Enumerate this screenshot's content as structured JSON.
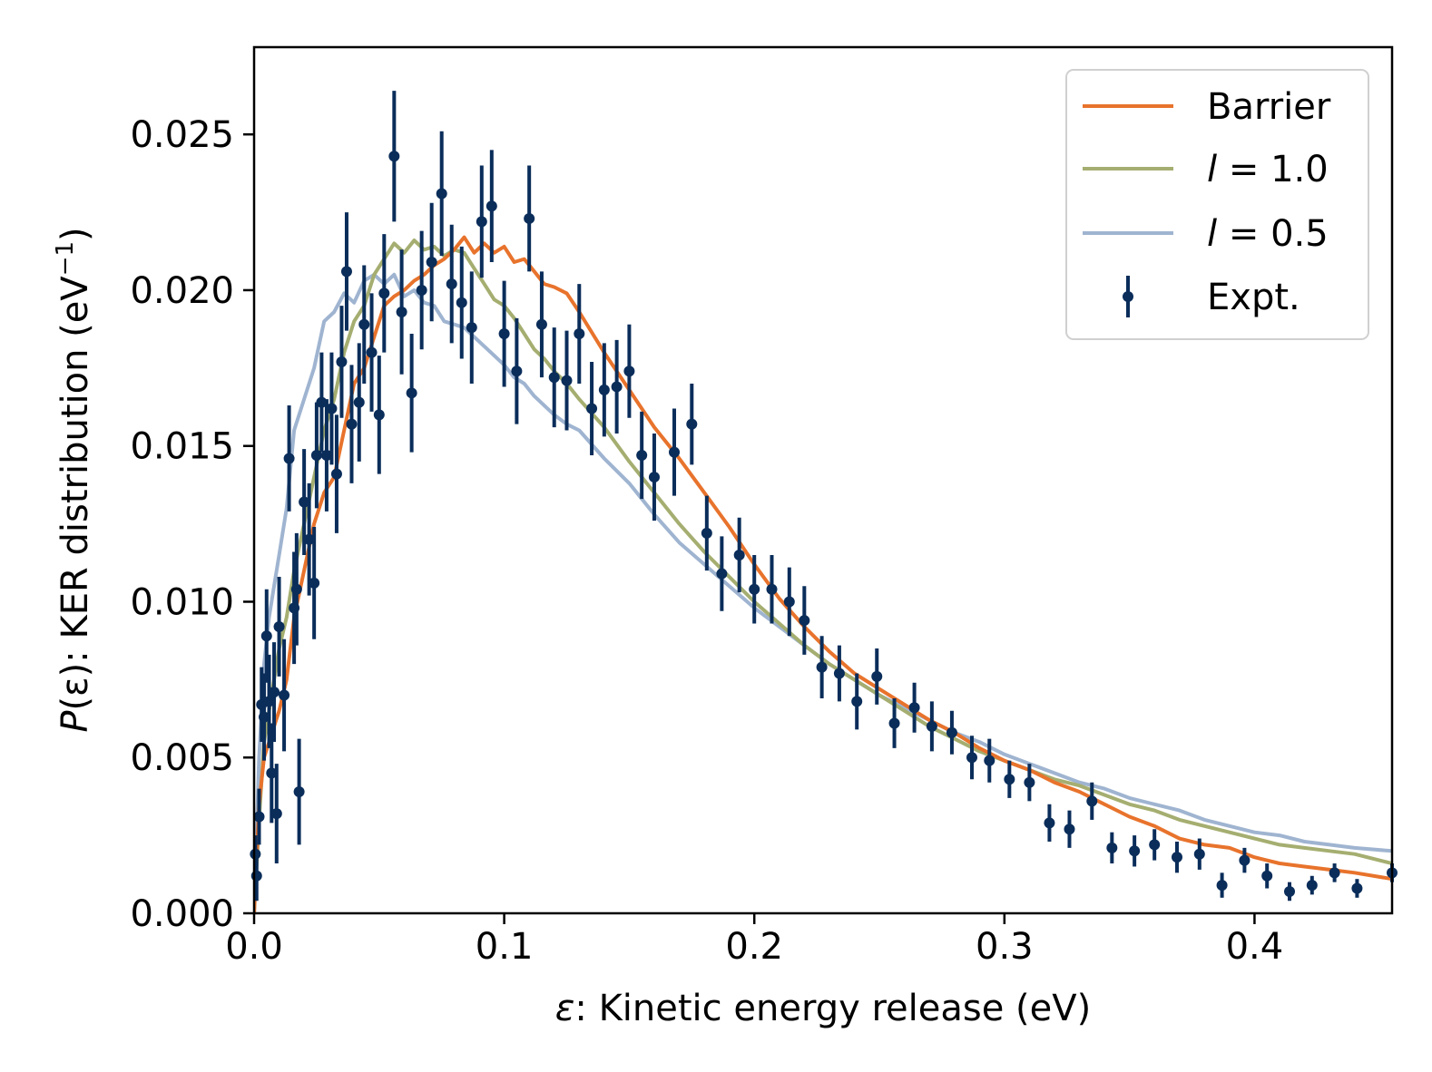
{
  "chart_data": {
    "type": "line",
    "xlabel_prefix": "ε",
    "xlabel": ": Kinetic energy release (eV)",
    "ylabel_prefix": "P",
    "ylabel_arg": "(ε)",
    "ylabel": ": KER distribution (eV",
    "ylabel_sup": "−1",
    "ylabel_close": ")",
    "xlim": [
      0.0,
      0.455
    ],
    "ylim": [
      0.0,
      0.0278
    ],
    "x_ticks": [
      0.0,
      0.1,
      0.2,
      0.3,
      0.4
    ],
    "x_tick_labels": [
      "0.0",
      "0.1",
      "0.2",
      "0.3",
      "0.4"
    ],
    "y_ticks": [
      0.0,
      0.005,
      0.01,
      0.015,
      0.02,
      0.025
    ],
    "y_tick_labels": [
      "0.000",
      "0.005",
      "0.010",
      "0.015",
      "0.020",
      "0.025"
    ],
    "grid": false,
    "legend_position": "top-right",
    "series": [
      {
        "name": "Barrier",
        "kind": "line",
        "color": "#e8732c",
        "x": [
          0.0,
          0.002,
          0.004,
          0.006,
          0.008,
          0.01,
          0.013,
          0.016,
          0.02,
          0.024,
          0.028,
          0.032,
          0.036,
          0.04,
          0.044,
          0.048,
          0.052,
          0.056,
          0.06,
          0.064,
          0.068,
          0.072,
          0.076,
          0.08,
          0.084,
          0.088,
          0.092,
          0.096,
          0.1,
          0.104,
          0.108,
          0.112,
          0.116,
          0.12,
          0.125,
          0.13,
          0.14,
          0.15,
          0.16,
          0.17,
          0.18,
          0.19,
          0.2,
          0.21,
          0.22,
          0.23,
          0.24,
          0.25,
          0.26,
          0.27,
          0.28,
          0.29,
          0.3,
          0.31,
          0.32,
          0.33,
          0.34,
          0.35,
          0.36,
          0.37,
          0.38,
          0.39,
          0.4,
          0.41,
          0.42,
          0.43,
          0.44,
          0.455
        ],
        "values": [
          0.0,
          0.0035,
          0.005,
          0.0055,
          0.006,
          0.0065,
          0.0075,
          0.0095,
          0.011,
          0.0125,
          0.0135,
          0.014,
          0.0155,
          0.017,
          0.0175,
          0.0185,
          0.0195,
          0.0198,
          0.02,
          0.0203,
          0.0205,
          0.0208,
          0.021,
          0.0213,
          0.0217,
          0.0212,
          0.0215,
          0.0212,
          0.0214,
          0.0209,
          0.021,
          0.0206,
          0.0202,
          0.0201,
          0.0199,
          0.0193,
          0.018,
          0.0168,
          0.0156,
          0.0146,
          0.0135,
          0.0124,
          0.0112,
          0.0101,
          0.0092,
          0.0084,
          0.0077,
          0.0072,
          0.0067,
          0.0062,
          0.0058,
          0.0053,
          0.0049,
          0.0046,
          0.0042,
          0.0039,
          0.0035,
          0.0031,
          0.0028,
          0.0024,
          0.0022,
          0.0021,
          0.0018,
          0.0016,
          0.0015,
          0.0014,
          0.0013,
          0.0011
        ]
      },
      {
        "name": "l = 1.0",
        "name_prefix": "l",
        "name_suffix": " = 1.0",
        "kind": "line",
        "color": "#a5ae70",
        "x": [
          0.0,
          0.002,
          0.004,
          0.006,
          0.008,
          0.01,
          0.013,
          0.016,
          0.02,
          0.024,
          0.028,
          0.032,
          0.036,
          0.04,
          0.044,
          0.048,
          0.052,
          0.056,
          0.06,
          0.064,
          0.068,
          0.072,
          0.076,
          0.08,
          0.084,
          0.088,
          0.092,
          0.096,
          0.1,
          0.104,
          0.108,
          0.112,
          0.116,
          0.12,
          0.125,
          0.13,
          0.14,
          0.15,
          0.16,
          0.17,
          0.18,
          0.19,
          0.2,
          0.21,
          0.22,
          0.23,
          0.24,
          0.25,
          0.26,
          0.27,
          0.28,
          0.29,
          0.3,
          0.31,
          0.32,
          0.33,
          0.34,
          0.35,
          0.36,
          0.37,
          0.38,
          0.39,
          0.4,
          0.41,
          0.42,
          0.43,
          0.44,
          0.455
        ],
        "values": [
          0.0,
          0.003,
          0.0055,
          0.0065,
          0.0075,
          0.0085,
          0.0095,
          0.011,
          0.0125,
          0.014,
          0.0155,
          0.0165,
          0.018,
          0.019,
          0.0195,
          0.0205,
          0.021,
          0.0215,
          0.0212,
          0.0216,
          0.0213,
          0.0214,
          0.0211,
          0.0213,
          0.0212,
          0.0207,
          0.0202,
          0.0197,
          0.0195,
          0.0191,
          0.0186,
          0.0181,
          0.0178,
          0.0174,
          0.017,
          0.0165,
          0.0156,
          0.0145,
          0.0135,
          0.0125,
          0.0116,
          0.0108,
          0.01,
          0.0093,
          0.0086,
          0.008,
          0.0075,
          0.007,
          0.0065,
          0.006,
          0.0056,
          0.0052,
          0.0049,
          0.0046,
          0.0043,
          0.0041,
          0.0038,
          0.0035,
          0.0033,
          0.003,
          0.0028,
          0.0026,
          0.0024,
          0.0022,
          0.0021,
          0.002,
          0.0019,
          0.0016
        ]
      },
      {
        "name": "l = 0.5",
        "name_prefix": "l",
        "name_suffix": " = 0.5",
        "kind": "line",
        "color": "#9fb4d0",
        "x": [
          0.0,
          0.002,
          0.004,
          0.006,
          0.008,
          0.01,
          0.013,
          0.016,
          0.02,
          0.024,
          0.028,
          0.032,
          0.036,
          0.04,
          0.044,
          0.048,
          0.052,
          0.056,
          0.06,
          0.064,
          0.068,
          0.072,
          0.076,
          0.08,
          0.084,
          0.088,
          0.092,
          0.096,
          0.1,
          0.104,
          0.108,
          0.112,
          0.116,
          0.12,
          0.125,
          0.13,
          0.14,
          0.15,
          0.16,
          0.17,
          0.18,
          0.19,
          0.2,
          0.21,
          0.22,
          0.23,
          0.24,
          0.25,
          0.26,
          0.27,
          0.28,
          0.29,
          0.3,
          0.31,
          0.32,
          0.33,
          0.34,
          0.35,
          0.36,
          0.37,
          0.38,
          0.39,
          0.4,
          0.41,
          0.42,
          0.43,
          0.44,
          0.455
        ],
        "values": [
          0.0,
          0.005,
          0.008,
          0.0095,
          0.0105,
          0.0115,
          0.013,
          0.0155,
          0.0165,
          0.0175,
          0.019,
          0.0193,
          0.0199,
          0.0196,
          0.0203,
          0.0205,
          0.0202,
          0.0205,
          0.0198,
          0.02,
          0.0196,
          0.0195,
          0.019,
          0.0189,
          0.0188,
          0.0185,
          0.0182,
          0.0179,
          0.0176,
          0.0172,
          0.017,
          0.0166,
          0.0163,
          0.016,
          0.0157,
          0.0155,
          0.0146,
          0.0138,
          0.0128,
          0.0119,
          0.0112,
          0.0105,
          0.0098,
          0.0092,
          0.0086,
          0.008,
          0.0075,
          0.007,
          0.0066,
          0.0062,
          0.0058,
          0.0055,
          0.0051,
          0.0048,
          0.0045,
          0.0042,
          0.004,
          0.0037,
          0.0035,
          0.0033,
          0.003,
          0.0028,
          0.0026,
          0.0025,
          0.0023,
          0.0022,
          0.0021,
          0.002
        ]
      },
      {
        "name": "Expt.",
        "kind": "errorbar",
        "color": "#0a2d5a",
        "x": [
          0.0005,
          0.001,
          0.002,
          0.003,
          0.004,
          0.005,
          0.006,
          0.007,
          0.008,
          0.009,
          0.01,
          0.012,
          0.014,
          0.016,
          0.017,
          0.018,
          0.02,
          0.022,
          0.024,
          0.025,
          0.027,
          0.029,
          0.031,
          0.033,
          0.035,
          0.037,
          0.039,
          0.042,
          0.044,
          0.047,
          0.05,
          0.052,
          0.056,
          0.059,
          0.063,
          0.067,
          0.071,
          0.075,
          0.079,
          0.083,
          0.087,
          0.091,
          0.095,
          0.1,
          0.105,
          0.11,
          0.115,
          0.12,
          0.125,
          0.13,
          0.135,
          0.14,
          0.145,
          0.15,
          0.155,
          0.16,
          0.168,
          0.175,
          0.181,
          0.187,
          0.194,
          0.2,
          0.207,
          0.214,
          0.22,
          0.227,
          0.234,
          0.241,
          0.249,
          0.256,
          0.264,
          0.271,
          0.279,
          0.287,
          0.294,
          0.302,
          0.31,
          0.318,
          0.326,
          0.335,
          0.343,
          0.352,
          0.36,
          0.369,
          0.378,
          0.387,
          0.396,
          0.405,
          0.414,
          0.423,
          0.432,
          0.441,
          0.455
        ],
        "values": [
          0.0019,
          0.0012,
          0.0031,
          0.0067,
          0.0063,
          0.0089,
          0.0068,
          0.0045,
          0.0071,
          0.0032,
          0.0092,
          0.007,
          0.0146,
          0.0098,
          0.0104,
          0.0039,
          0.0132,
          0.012,
          0.0106,
          0.0147,
          0.0164,
          0.0147,
          0.0162,
          0.0141,
          0.0177,
          0.0206,
          0.0157,
          0.0164,
          0.0189,
          0.018,
          0.016,
          0.0199,
          0.0243,
          0.0193,
          0.0167,
          0.02,
          0.0209,
          0.0231,
          0.0202,
          0.0196,
          0.0188,
          0.0222,
          0.0227,
          0.0186,
          0.0174,
          0.0223,
          0.0189,
          0.0172,
          0.0171,
          0.0186,
          0.0162,
          0.0168,
          0.0169,
          0.0174,
          0.0147,
          0.014,
          0.0148,
          0.0157,
          0.0122,
          0.0109,
          0.0115,
          0.0104,
          0.0104,
          0.01,
          0.0094,
          0.0079,
          0.0077,
          0.0068,
          0.0076,
          0.0061,
          0.0066,
          0.006,
          0.0058,
          0.005,
          0.0049,
          0.0043,
          0.0042,
          0.0029,
          0.0027,
          0.0036,
          0.0021,
          0.002,
          0.0022,
          0.0018,
          0.0019,
          0.0009,
          0.0017,
          0.0012,
          0.0007,
          0.0009,
          0.0013,
          0.0008,
          0.0013
        ],
        "errors": [
          0.0006,
          0.0008,
          0.0009,
          0.0012,
          0.0014,
          0.0015,
          0.0015,
          0.0016,
          0.0016,
          0.0016,
          0.0016,
          0.0018,
          0.0017,
          0.0018,
          0.0018,
          0.0017,
          0.0017,
          0.0018,
          0.0018,
          0.0017,
          0.0016,
          0.0018,
          0.0018,
          0.0019,
          0.0018,
          0.0019,
          0.0019,
          0.0019,
          0.0019,
          0.0019,
          0.0019,
          0.0019,
          0.0021,
          0.002,
          0.0019,
          0.0019,
          0.0019,
          0.002,
          0.0019,
          0.0018,
          0.0018,
          0.0018,
          0.0018,
          0.0017,
          0.0017,
          0.0017,
          0.0017,
          0.0016,
          0.0016,
          0.0016,
          0.0015,
          0.0015,
          0.0015,
          0.0015,
          0.0014,
          0.0014,
          0.0014,
          0.0013,
          0.0012,
          0.0012,
          0.0012,
          0.0011,
          0.0011,
          0.0011,
          0.0011,
          0.001,
          0.0009,
          0.0009,
          0.0009,
          0.0008,
          0.0008,
          0.0008,
          0.0007,
          0.0007,
          0.0007,
          0.0006,
          0.0006,
          0.0006,
          0.0006,
          0.0006,
          0.0005,
          0.0005,
          0.0005,
          0.0005,
          0.0005,
          0.0004,
          0.0004,
          0.0004,
          0.0003,
          0.0003,
          0.0003,
          0.0003,
          0.0003
        ]
      }
    ]
  }
}
